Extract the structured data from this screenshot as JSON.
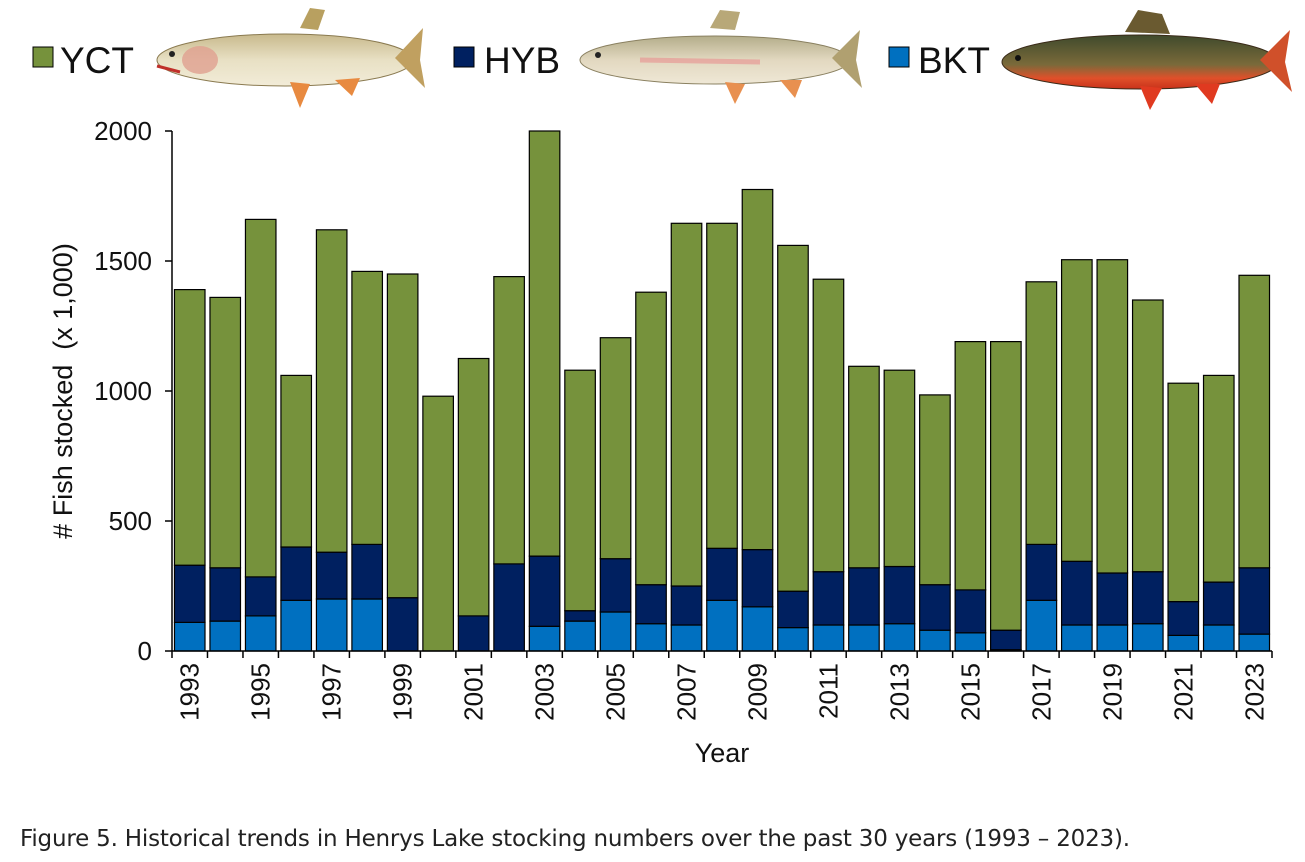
{
  "caption": "Figure 5. Historical trends in Henrys Lake stocking numbers over the past 30 years (1993 – 2023).",
  "legend": {
    "items": [
      {
        "label": "YCT",
        "color": "#76923c",
        "icon": "cutthroat-trout-icon"
      },
      {
        "label": "HYB",
        "color": "#002060",
        "icon": "hybrid-trout-icon"
      },
      {
        "label": "BKT",
        "color": "#0070c0",
        "icon": "brook-trout-icon"
      }
    ]
  },
  "chart_data": {
    "type": "bar",
    "stacked": true,
    "xlabel": "Year",
    "ylabel": "# Fish stocked  (x 1,000)",
    "ylim": [
      0,
      2000
    ],
    "yticks": [
      0,
      500,
      1000,
      1500,
      2000
    ],
    "xtick_labels": [
      "1993",
      "1995",
      "1997",
      "1999",
      "2001",
      "2003",
      "2005",
      "2007",
      "2009",
      "2011",
      "2013",
      "2015",
      "2017",
      "2019",
      "2021",
      "2023"
    ],
    "categories": [
      "1993",
      "1994",
      "1995",
      "1996",
      "1997",
      "1998",
      "1999",
      "2000",
      "2001",
      "2002",
      "2003",
      "2004",
      "2005",
      "2006",
      "2007",
      "2008",
      "2009",
      "2010",
      "2011",
      "2012",
      "2013",
      "2014",
      "2015",
      "2016",
      "2017",
      "2018",
      "2019",
      "2020",
      "2021",
      "2022",
      "2023"
    ],
    "grid": false,
    "legend_position": "top",
    "series": [
      {
        "name": "BKT",
        "color": "#0070c0",
        "values": [
          110,
          115,
          135,
          195,
          200,
          200,
          0,
          0,
          0,
          0,
          95,
          115,
          150,
          105,
          100,
          195,
          170,
          90,
          100,
          100,
          105,
          80,
          70,
          5,
          195,
          100,
          100,
          105,
          60,
          100,
          65
        ]
      },
      {
        "name": "HYB",
        "color": "#002060",
        "values": [
          220,
          205,
          150,
          205,
          180,
          210,
          205,
          0,
          135,
          335,
          270,
          40,
          205,
          150,
          150,
          200,
          220,
          140,
          205,
          220,
          220,
          175,
          165,
          75,
          215,
          245,
          200,
          200,
          130,
          165,
          255
        ]
      },
      {
        "name": "YCT",
        "color": "#76923c",
        "values": [
          1060,
          1040,
          1375,
          660,
          1240,
          1050,
          1245,
          980,
          990,
          1105,
          1635,
          925,
          850,
          1125,
          1395,
          1250,
          1385,
          1330,
          1125,
          775,
          755,
          730,
          955,
          1110,
          1010,
          1160,
          1205,
          1045,
          840,
          795,
          1125
        ]
      }
    ]
  }
}
